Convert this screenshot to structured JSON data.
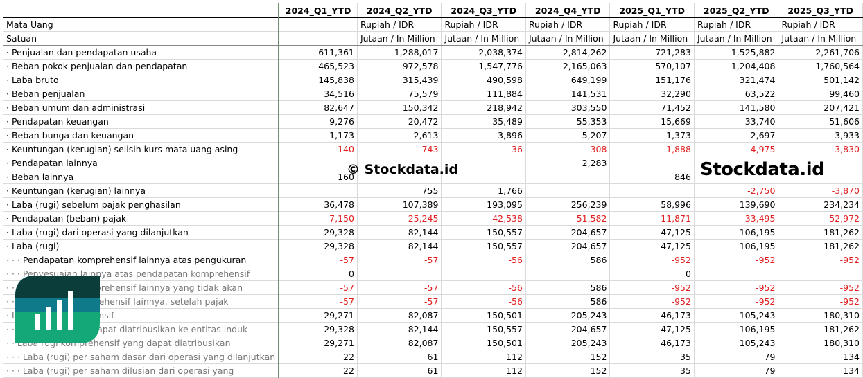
{
  "columns": [
    "2024_Q1_YTD",
    "2024_Q2_YTD",
    "2024_Q3_YTD",
    "2024_Q4_YTD",
    "2025_Q1_YTD",
    "2025_Q2_YTD",
    "2025_Q3_YTD"
  ],
  "meta": {
    "currency_label": "Mata Uang",
    "unit_label": "Satuan",
    "currency_values": [
      "",
      "Rupiah / IDR",
      "Rupiah / IDR",
      "Rupiah / IDR",
      "Rupiah / IDR",
      "Rupiah / IDR",
      "Rupiah / IDR"
    ],
    "unit_values": [
      "",
      "Jutaan / In Million",
      "Jutaan / In Million",
      "Jutaan / In Million",
      "Jutaan / In Million",
      "Jutaan / In Million",
      "Jutaan / In Million"
    ]
  },
  "rows": [
    {
      "label": "· Penjualan dan pendapatan usaha",
      "values": [
        "611,361",
        "1,288,017",
        "2,038,374",
        "2,814,262",
        "721,283",
        "1,525,882",
        "2,261,706"
      ]
    },
    {
      "label": "· Beban pokok penjualan dan pendapatan",
      "values": [
        "465,523",
        "972,578",
        "1,547,776",
        "2,165,063",
        "570,107",
        "1,204,408",
        "1,760,564"
      ]
    },
    {
      "label": "· Laba bruto",
      "values": [
        "145,838",
        "315,439",
        "490,598",
        "649,199",
        "151,176",
        "321,474",
        "501,142"
      ]
    },
    {
      "label": "· Beban penjualan",
      "values": [
        "34,516",
        "75,579",
        "111,884",
        "141,531",
        "32,290",
        "63,522",
        "99,460"
      ]
    },
    {
      "label": "· Beban umum dan administrasi",
      "values": [
        "82,647",
        "150,342",
        "218,942",
        "303,550",
        "71,452",
        "141,580",
        "207,421"
      ]
    },
    {
      "label": "· Pendapatan keuangan",
      "values": [
        "9,276",
        "20,472",
        "35,489",
        "55,353",
        "15,669",
        "33,740",
        "51,606"
      ]
    },
    {
      "label": "· Beban bunga dan keuangan",
      "values": [
        "1,173",
        "2,613",
        "3,896",
        "5,207",
        "1,373",
        "2,697",
        "3,933"
      ]
    },
    {
      "label": "· Keuntungan (kerugian) selisih kurs mata uang asing",
      "values": [
        "-140",
        "-743",
        "-36",
        "-308",
        "-1,888",
        "-4,975",
        "-3,830"
      ]
    },
    {
      "label": "· Pendapatan lainnya",
      "values": [
        "",
        "",
        "",
        "2,283",
        "",
        "",
        ""
      ]
    },
    {
      "label": "· Beban lainnya",
      "values": [
        "160",
        "",
        "",
        "",
        "846",
        "",
        ""
      ]
    },
    {
      "label": "· Keuntungan (kerugian) lainnya",
      "values": [
        "",
        "755",
        "1,766",
        "",
        "",
        "-2,750",
        "-3,870"
      ]
    },
    {
      "label": "· Laba (rugi) sebelum pajak penghasilan",
      "values": [
        "36,478",
        "107,389",
        "193,095",
        "256,239",
        "58,996",
        "139,690",
        "234,234"
      ]
    },
    {
      "label": "· Pendapatan (beban) pajak",
      "values": [
        "-7,150",
        "-25,245",
        "-42,538",
        "-51,582",
        "-11,871",
        "-33,495",
        "-52,972"
      ]
    },
    {
      "label": "· Laba (rugi) dari operasi yang dilanjutkan",
      "values": [
        "29,328",
        "82,144",
        "150,557",
        "204,657",
        "47,125",
        "106,195",
        "181,262"
      ]
    },
    {
      "label": "· Laba (rugi)",
      "values": [
        "29,328",
        "82,144",
        "150,557",
        "204,657",
        "47,125",
        "106,195",
        "181,262"
      ]
    },
    {
      "label": "· · · Pendapatan komprehensif lainnya atas pengukuran",
      "values": [
        "-57",
        "-57",
        "-56",
        "586",
        "-952",
        "-952",
        "-952"
      ]
    },
    {
      "label": "· · · Penyesuaian lainnya atas pendapatan komprehensif",
      "values": [
        "0",
        "",
        "",
        "",
        "0",
        "",
        ""
      ],
      "grey": true
    },
    {
      "label": "· · · Pendapatan komprehensif lainnya yang tidak akan",
      "values": [
        "-57",
        "-57",
        "-56",
        "586",
        "-952",
        "-952",
        "-952"
      ],
      "grey": true
    },
    {
      "label": "· · Pendapatan komprehensif lainnya, setelah pajak",
      "values": [
        "-57",
        "-57",
        "-56",
        "586",
        "-952",
        "-952",
        "-952"
      ],
      "grey": true
    },
    {
      "label": "· Laba rugi komprehensif",
      "values": [
        "29,271",
        "82,087",
        "150,501",
        "205,243",
        "46,173",
        "105,243",
        "180,310"
      ],
      "grey": true
    },
    {
      "label": "· · Laba (rugi) yang dapat diatribusikan ke entitas induk",
      "values": [
        "29,328",
        "82,144",
        "150,557",
        "204,657",
        "47,125",
        "106,195",
        "181,262"
      ],
      "grey": true
    },
    {
      "label": "· · Laba rugi komprehensif yang dapat diatribusikan",
      "values": [
        "29,271",
        "82,087",
        "150,501",
        "205,243",
        "46,173",
        "105,243",
        "180,310"
      ],
      "grey": true
    },
    {
      "label": "· · · Laba (rugi) per saham dasar dari operasi yang dilanjutkan",
      "values": [
        "22",
        "61",
        "112",
        "152",
        "35",
        "79",
        "134"
      ],
      "grey": true
    },
    {
      "label": "· · · Laba (rugi) per saham dilusian dari operasi yang",
      "values": [
        "22",
        "61",
        "112",
        "152",
        "35",
        "79",
        "134"
      ],
      "grey": true
    }
  ],
  "watermark": {
    "small": "© Stockdata.id",
    "big": "Stockdata.id"
  },
  "colors": {
    "negative": "#e02020",
    "logo_dark": "#0b3d3a",
    "logo_mid": "#0f7a8a",
    "logo_light": "#14a878"
  }
}
